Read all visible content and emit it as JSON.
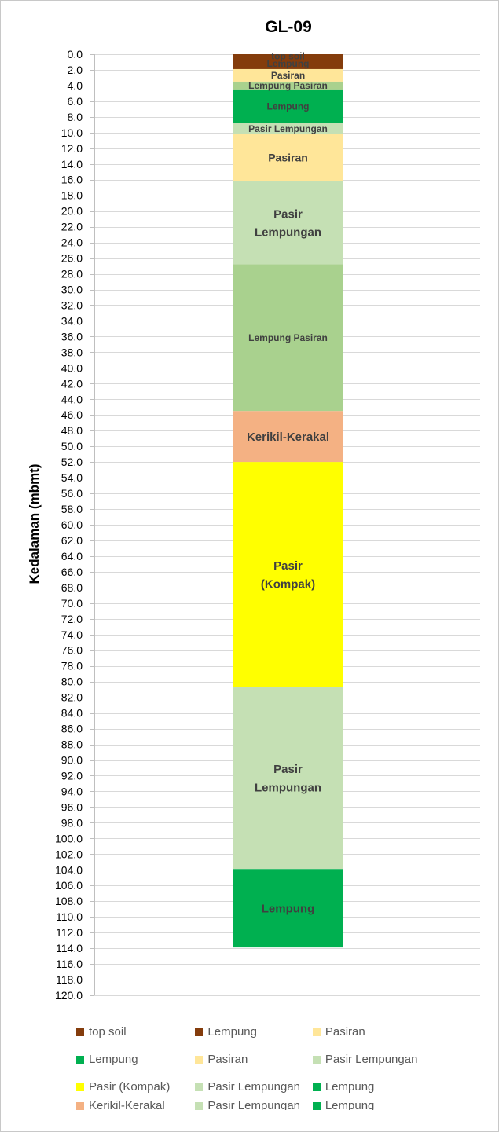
{
  "chart_data": {
    "type": "bar",
    "orientation": "vertical-stacked-depth",
    "title": "GL-09",
    "ylabel": "Kedalaman (mbmt)",
    "ylim": [
      0,
      120
    ],
    "y_tick_step": 2,
    "y_inverted": true,
    "grid": true,
    "layers": [
      {
        "name": "top soil",
        "top": 0.0,
        "bottom": 0.5,
        "label": "top soil",
        "label_size": "small",
        "color": "#843c0c"
      },
      {
        "name": "Lempung",
        "top": 0.5,
        "bottom": 1.9,
        "label": "Lempung",
        "label_size": "small",
        "color": "#843c0c"
      },
      {
        "name": "Pasiran",
        "top": 1.9,
        "bottom": 3.5,
        "label": "Pasiran",
        "label_size": "small",
        "color": "#ffe699"
      },
      {
        "name": "Lempung Pasiran",
        "top": 3.5,
        "bottom": 4.5,
        "label": "Lempung Pasiran",
        "label_size": "small",
        "color": "#a9d18e"
      },
      {
        "name": "Lempung",
        "top": 4.5,
        "bottom": 8.8,
        "label": "Lempung",
        "label_size": "small",
        "color": "#00b050"
      },
      {
        "name": "Pasir Lempungan",
        "top": 8.8,
        "bottom": 10.2,
        "label": "Pasir Lempungan",
        "label_size": "small",
        "color": "#c5e0b4"
      },
      {
        "name": "Pasiran",
        "top": 10.2,
        "bottom": 16.2,
        "label": "Pasiran",
        "label_size": "medium",
        "color": "#ffe699"
      },
      {
        "name": "Pasir Lempungan",
        "top": 16.2,
        "bottom": 26.8,
        "label": "Pasir\nLempungan",
        "label_size": "large",
        "color": "#c5e0b4"
      },
      {
        "name": "Lempung Pasiran",
        "top": 26.8,
        "bottom": 45.5,
        "label": "Lempung Pasiran",
        "label_size": "small",
        "color": "#a9d18e"
      },
      {
        "name": "Kerikil-Kerakal",
        "top": 45.5,
        "bottom": 52.0,
        "label": "Kerikil-Kerakal",
        "label_size": "large",
        "color": "#f4b183"
      },
      {
        "name": "Pasir (Kompak)",
        "top": 52.0,
        "bottom": 80.7,
        "label": "Pasir\n(Kompak)",
        "label_size": "large",
        "color": "#ffff00"
      },
      {
        "name": "Pasir Lempungan",
        "top": 80.7,
        "bottom": 103.9,
        "label": "Pasir\nLempungan",
        "label_size": "large",
        "color": "#c5e0b4"
      },
      {
        "name": "Lempung",
        "top": 103.9,
        "bottom": 113.9,
        "label": "Lempung",
        "label_size": "large",
        "color": "#00b050"
      }
    ],
    "legend": {
      "placement": "bottom",
      "rows": [
        [
          {
            "label": "top soil",
            "color": "#843c0c"
          },
          {
            "label": "Lempung",
            "color": "#843c0c"
          },
          {
            "label": "Pasiran",
            "color": "#ffe699"
          }
        ],
        [
          {
            "label": "Lempung",
            "color": "#00b050"
          },
          {
            "label": "Pasiran",
            "color": "#ffe699"
          },
          {
            "label": "Pasir Lempungan",
            "color": "#c5e0b4"
          }
        ],
        [
          {
            "label": "Pasir (Kompak)",
            "color": "#ffff00"
          },
          {
            "label": "Pasir Lempungan",
            "color": "#c5e0b4"
          },
          {
            "label": "Lempung",
            "color": "#00b050"
          }
        ],
        [
          {
            "label": "Kerikil-Kerakal",
            "color": "#f4b183"
          },
          {
            "label": "Pasir Lempungan",
            "color": "#c5e0b4"
          },
          {
            "label": "Lempung",
            "color": "#00b050"
          }
        ]
      ]
    }
  }
}
